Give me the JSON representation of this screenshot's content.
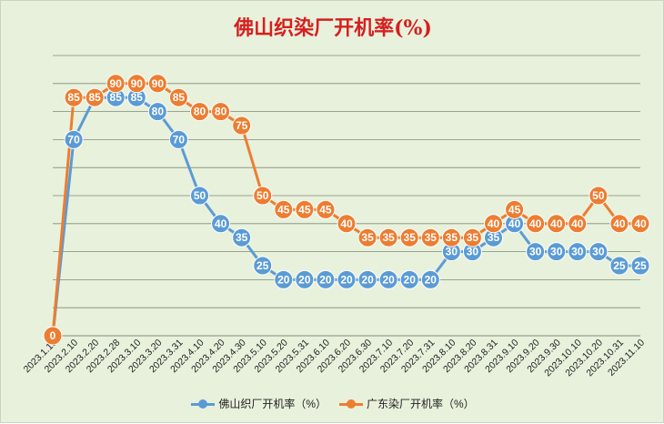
{
  "chart_data": {
    "type": "line",
    "title": "佛山织染厂开机率(%)",
    "categories": [
      "2023.1.15",
      "2023.2.10",
      "2023.2.20",
      "2023.2.28",
      "2023.3.10",
      "2023.3.20",
      "2023.3.31",
      "2023.4.10",
      "2023.4.20",
      "2023.4.30",
      "2023.5.10",
      "2023.5.20",
      "2023.5.31",
      "2023.6.10",
      "2023.6.20",
      "2023.6.30",
      "2023.7.10",
      "2023.7.20",
      "2023.7.31",
      "2023.8.10",
      "2023.8.20",
      "2023.8.31",
      "2023.9.10",
      "2023.9.20",
      "2023.9.30",
      "2023.10.10",
      "2023.10.20",
      "2023.10.31",
      "2023.11.10"
    ],
    "series": [
      {
        "name": "佛山织厂开机率（%）",
        "color": "#5b9bd5",
        "values": [
          0,
          70,
          85,
          85,
          85,
          80,
          70,
          50,
          40,
          35,
          25,
          20,
          20,
          20,
          20,
          20,
          20,
          20,
          20,
          30,
          30,
          35,
          40,
          30,
          30,
          30,
          30,
          25,
          25
        ]
      },
      {
        "name": "广东染厂开机率（%）",
        "color": "#ed7d31",
        "values": [
          0,
          85,
          85,
          90,
          90,
          90,
          85,
          80,
          80,
          75,
          50,
          45,
          45,
          45,
          40,
          35,
          35,
          35,
          35,
          35,
          35,
          40,
          45,
          40,
          40,
          40,
          50,
          40,
          40
        ]
      }
    ],
    "ylim": [
      0,
      100
    ],
    "grid": true,
    "legend_position": "bottom"
  }
}
